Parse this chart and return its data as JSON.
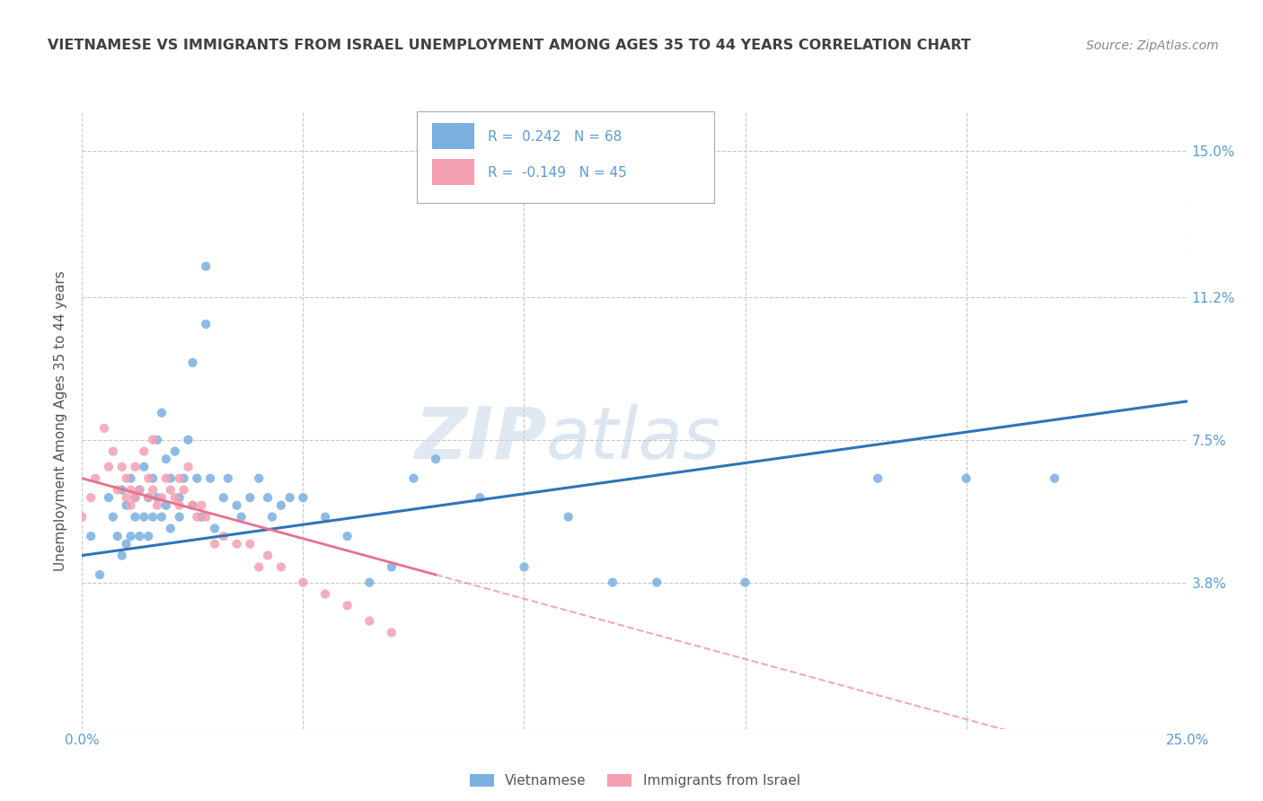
{
  "title": "VIETNAMESE VS IMMIGRANTS FROM ISRAEL UNEMPLOYMENT AMONG AGES 35 TO 44 YEARS CORRELATION CHART",
  "source": "Source: ZipAtlas.com",
  "ylabel": "Unemployment Among Ages 35 to 44 years",
  "xlim": [
    0.0,
    0.25
  ],
  "ylim": [
    0.0,
    0.16
  ],
  "yticks": [
    0.0,
    0.038,
    0.075,
    0.112,
    0.15
  ],
  "ytick_labels": [
    "",
    "3.8%",
    "7.5%",
    "11.2%",
    "15.0%"
  ],
  "xticks": [
    0.0,
    0.05,
    0.1,
    0.15,
    0.2,
    0.25
  ],
  "xtick_labels": [
    "0.0%",
    "",
    "",
    "",
    "",
    "25.0%"
  ],
  "background_color": "#ffffff",
  "grid_color": "#c8c8c8",
  "axis_color": "#5b9bd5",
  "legend1_r": "0.242",
  "legend1_n": "68",
  "legend2_r": "-0.149",
  "legend2_n": "45",
  "series1_color": "#7ab0e0",
  "series2_color": "#f4a0b0",
  "line1_color": "#2e75b6",
  "line2_color": "#e87090",
  "series1_x": [
    0.002,
    0.004,
    0.006,
    0.007,
    0.008,
    0.009,
    0.009,
    0.01,
    0.01,
    0.011,
    0.011,
    0.012,
    0.012,
    0.013,
    0.013,
    0.014,
    0.014,
    0.015,
    0.015,
    0.016,
    0.016,
    0.017,
    0.017,
    0.018,
    0.018,
    0.019,
    0.019,
    0.02,
    0.02,
    0.021,
    0.022,
    0.022,
    0.023,
    0.024,
    0.025,
    0.026,
    0.027,
    0.028,
    0.029,
    0.03,
    0.032,
    0.033,
    0.035,
    0.036,
    0.038,
    0.04,
    0.042,
    0.043,
    0.045,
    0.047,
    0.05,
    0.055,
    0.06,
    0.065,
    0.07,
    0.075,
    0.08,
    0.09,
    0.1,
    0.11,
    0.12,
    0.13,
    0.15,
    0.18,
    0.2,
    0.22,
    0.025,
    0.028
  ],
  "series1_y": [
    0.05,
    0.04,
    0.06,
    0.055,
    0.05,
    0.062,
    0.045,
    0.058,
    0.048,
    0.065,
    0.05,
    0.055,
    0.06,
    0.062,
    0.05,
    0.068,
    0.055,
    0.06,
    0.05,
    0.065,
    0.055,
    0.075,
    0.06,
    0.082,
    0.055,
    0.07,
    0.058,
    0.065,
    0.052,
    0.072,
    0.06,
    0.055,
    0.065,
    0.075,
    0.058,
    0.065,
    0.055,
    0.12,
    0.065,
    0.052,
    0.06,
    0.065,
    0.058,
    0.055,
    0.06,
    0.065,
    0.06,
    0.055,
    0.058,
    0.06,
    0.06,
    0.055,
    0.05,
    0.038,
    0.042,
    0.065,
    0.07,
    0.06,
    0.042,
    0.055,
    0.038,
    0.038,
    0.038,
    0.065,
    0.065,
    0.065,
    0.095,
    0.105
  ],
  "series2_x": [
    0.0,
    0.002,
    0.003,
    0.005,
    0.006,
    0.007,
    0.008,
    0.009,
    0.01,
    0.01,
    0.011,
    0.011,
    0.012,
    0.012,
    0.013,
    0.014,
    0.015,
    0.015,
    0.016,
    0.016,
    0.017,
    0.018,
    0.019,
    0.02,
    0.021,
    0.022,
    0.022,
    0.023,
    0.024,
    0.025,
    0.026,
    0.027,
    0.028,
    0.03,
    0.032,
    0.035,
    0.038,
    0.04,
    0.042,
    0.045,
    0.05,
    0.055,
    0.06,
    0.065,
    0.07
  ],
  "series2_y": [
    0.055,
    0.06,
    0.065,
    0.078,
    0.068,
    0.072,
    0.062,
    0.068,
    0.06,
    0.065,
    0.058,
    0.062,
    0.06,
    0.068,
    0.062,
    0.072,
    0.06,
    0.065,
    0.062,
    0.075,
    0.058,
    0.06,
    0.065,
    0.062,
    0.06,
    0.058,
    0.065,
    0.062,
    0.068,
    0.058,
    0.055,
    0.058,
    0.055,
    0.048,
    0.05,
    0.048,
    0.048,
    0.042,
    0.045,
    0.042,
    0.038,
    0.035,
    0.032,
    0.028,
    0.025
  ]
}
